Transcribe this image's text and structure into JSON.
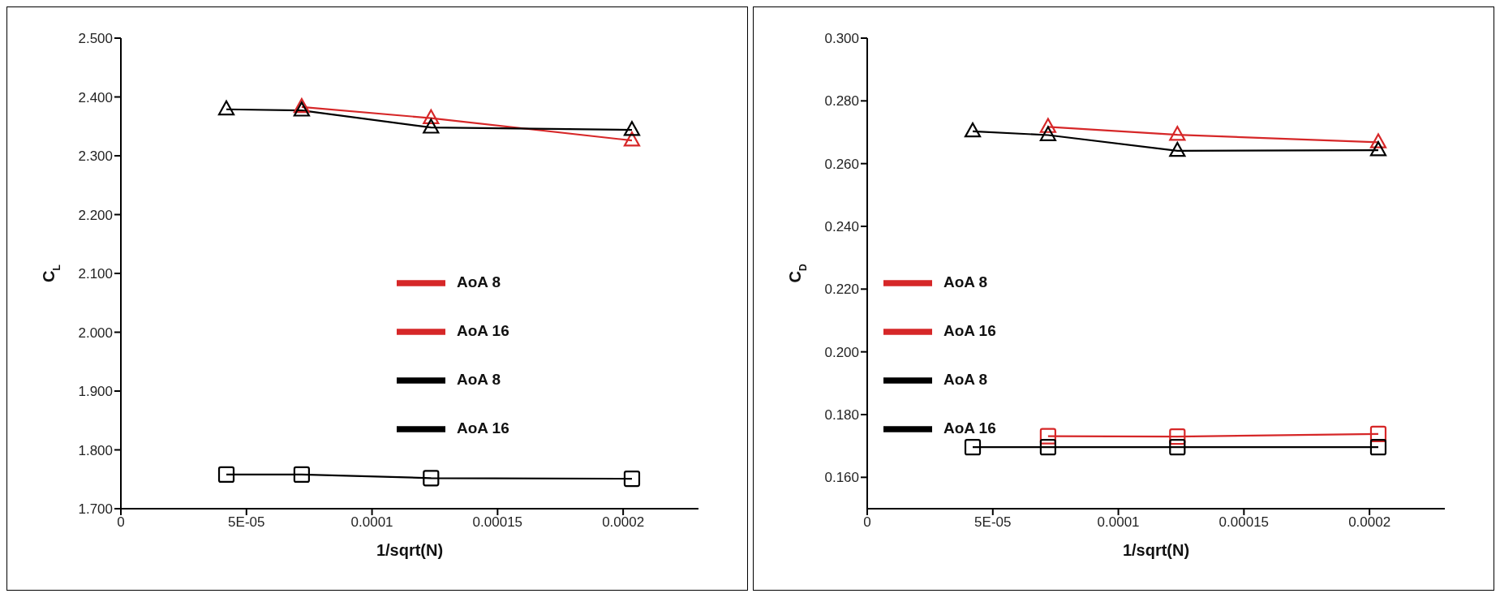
{
  "chart_data": [
    {
      "type": "line",
      "xlabel": "1/sqrt(N)",
      "ylabel": "C$_{L}$",
      "xlim": [
        0,
        0.00023
      ],
      "ylim": [
        1.7,
        2.5
      ],
      "xticks": [
        0,
        {
          "value": 5e-05,
          "label": "5E-05"
        },
        0.0001,
        0.00015,
        0.0002
      ],
      "yticks": [
        {
          "value": 1.7,
          "label": "1.700"
        },
        {
          "value": 1.8,
          "label": "1.800"
        },
        {
          "value": 1.9,
          "label": "1.900"
        },
        {
          "value": 2.0,
          "label": "2.000"
        },
        {
          "value": 2.1,
          "label": "2.100"
        },
        {
          "value": 2.2,
          "label": "2.200"
        },
        {
          "value": 2.3,
          "label": "2.300"
        },
        {
          "value": 2.4,
          "label": "2.400"
        },
        {
          "value": 2.5,
          "label": "2.500"
        }
      ],
      "legend": "center right",
      "line_style": "solid",
      "series": [
        {
          "name": "AoA 8",
          "color": "#d62728",
          "marker": "square",
          "values": [
            null
          ]
        },
        {
          "name": "AoA 16",
          "color": "#d62728",
          "marker": "triangle",
          "x": [
            7.2e-05,
            0.0001235,
            0.0002035
          ],
          "values": [
            2.383,
            2.364,
            2.326
          ]
        },
        {
          "name": "AoA 8",
          "color": "#000000",
          "marker": "square",
          "x": [
            4.2e-05,
            7.2e-05,
            0.0001235,
            0.0002035
          ],
          "values": [
            1.758,
            1.758,
            1.752,
            1.751
          ]
        },
        {
          "name": "AoA 16",
          "color": "#000000",
          "marker": "triangle",
          "x": [
            4.2e-05,
            7.2e-05,
            0.0001235,
            0.0002035
          ],
          "values": [
            2.379,
            2.377,
            2.348,
            2.344
          ]
        }
      ]
    },
    {
      "type": "line",
      "xlabel": "1/sqrt(N)",
      "ylabel": "C$_{D}$",
      "xlim": [
        0,
        0.00023
      ],
      "ylim": [
        0.15,
        0.3
      ],
      "xticks": [
        0,
        {
          "value": 5e-05,
          "label": "5E-05"
        },
        0.0001,
        0.00015,
        0.0002
      ],
      "yticks": [
        {
          "value": 0.16,
          "label": "0.160"
        },
        {
          "value": 0.18,
          "label": "0.180"
        },
        {
          "value": 0.2,
          "label": "0.200"
        },
        {
          "value": 0.22,
          "label": "0.220"
        },
        {
          "value": 0.24,
          "label": "0.240"
        },
        {
          "value": 0.26,
          "label": "0.260"
        },
        {
          "value": 0.28,
          "label": "0.280"
        },
        {
          "value": 0.3,
          "label": "0.300"
        }
      ],
      "legend": "center left",
      "line_style": "solid",
      "series": [
        {
          "name": "AoA 8",
          "color": "#d62728",
          "marker": "square",
          "x": [
            7.2e-05,
            0.0001235,
            0.0002035
          ],
          "values": [
            0.1731,
            0.173,
            0.1738
          ]
        },
        {
          "name": "AoA 16",
          "color": "#d62728",
          "marker": "triangle",
          "x": [
            7.2e-05,
            0.0001235,
            0.0002035
          ],
          "values": [
            0.2717,
            0.2692,
            0.2668
          ]
        },
        {
          "name": "AoA 8",
          "color": "#000000",
          "marker": "square",
          "x": [
            4.2e-05,
            7.2e-05,
            0.0001235,
            0.0002035
          ],
          "values": [
            0.1696,
            0.1696,
            0.1696,
            0.1696
          ]
        },
        {
          "name": "AoA 16",
          "color": "#000000",
          "marker": "triangle",
          "x": [
            4.2e-05,
            7.2e-05,
            0.0001235,
            0.0002035
          ],
          "values": [
            0.2703,
            0.2691,
            0.2641,
            0.2643
          ]
        }
      ]
    }
  ]
}
